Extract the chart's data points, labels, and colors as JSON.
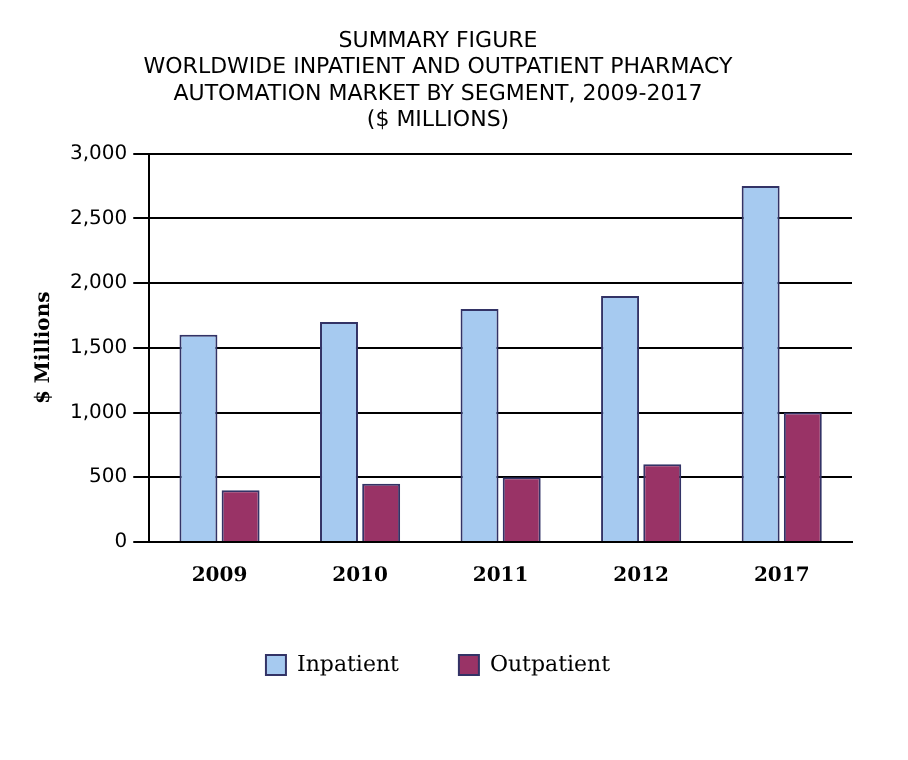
{
  "chart_data": {
    "type": "bar",
    "title": "SUMMARY FIGURE\nWORLDWIDE INPATIENT AND OUTPATIENT PHARMACY\nAUTOMATION MARKET BY SEGMENT, 2009-2017\n($ MILLIONS)",
    "ylabel": "$ Millions",
    "categories": [
      "2009",
      "2010",
      "2011",
      "2012",
      "2017"
    ],
    "series": [
      {
        "name": "Inpatient",
        "color": "#a6caf0",
        "values": [
          1600,
          1700,
          1800,
          1900,
          2750
        ]
      },
      {
        "name": "Outpatient",
        "color": "#993366",
        "values": [
          400,
          450,
          500,
          600,
          1000
        ]
      }
    ],
    "ylim": [
      0,
      3000
    ],
    "yticks": [
      0,
      500,
      {
        "value": 1000,
        "label": "1,000"
      },
      {
        "value": 1500,
        "label": "1,500"
      },
      {
        "value": 2000,
        "label": "2,000"
      },
      {
        "value": 2500,
        "label": "2,500"
      },
      {
        "value": 3000,
        "label": "3,000"
      }
    ],
    "grid": "y",
    "legend": "bottom"
  }
}
